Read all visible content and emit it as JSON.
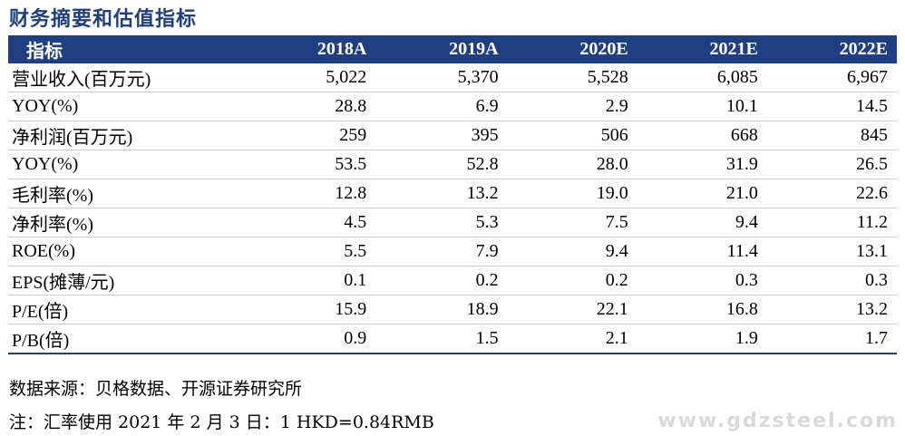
{
  "title": "财务摘要和估值指标",
  "table": {
    "header_label": "指标",
    "years": [
      "2018A",
      "2019A",
      "2020E",
      "2021E",
      "2022E"
    ],
    "rows": [
      {
        "label": "营业收入(百万元)",
        "values": [
          "5,022",
          "5,370",
          "5,528",
          "6,085",
          "6,967"
        ]
      },
      {
        "label": "YOY(%)",
        "values": [
          "28.8",
          "6.9",
          "2.9",
          "10.1",
          "14.5"
        ]
      },
      {
        "label": "净利润(百万元)",
        "values": [
          "259",
          "395",
          "506",
          "668",
          "845"
        ]
      },
      {
        "label": "YOY(%)",
        "values": [
          "53.5",
          "52.8",
          "28.0",
          "31.9",
          "26.5"
        ]
      },
      {
        "label": "毛利率(%)",
        "values": [
          "12.8",
          "13.2",
          "19.0",
          "21.0",
          "22.6"
        ]
      },
      {
        "label": "净利率(%)",
        "values": [
          "4.5",
          "5.3",
          "7.5",
          "9.4",
          "11.2"
        ]
      },
      {
        "label": "ROE(%)",
        "values": [
          "5.5",
          "7.9",
          "9.4",
          "11.4",
          "13.1"
        ]
      },
      {
        "label": "EPS(摊薄/元)",
        "values": [
          "0.1",
          "0.2",
          "0.2",
          "0.3",
          "0.3"
        ]
      },
      {
        "label": "P/E(倍)",
        "values": [
          "15.9",
          "18.9",
          "22.1",
          "16.8",
          "13.2"
        ]
      },
      {
        "label": "P/B(倍)",
        "values": [
          "0.9",
          "1.5",
          "2.1",
          "1.9",
          "1.7"
        ]
      }
    ]
  },
  "source_note": "数据来源：贝格数据、开源证券研究所",
  "remark_note": "注：汇率使用 2021 年 2 月 3 日：1 HKD=0.84RMB",
  "watermark": "www.gdzsteel.com",
  "colors": {
    "header_bg": "#1f3f80",
    "title": "#1f3f80"
  }
}
